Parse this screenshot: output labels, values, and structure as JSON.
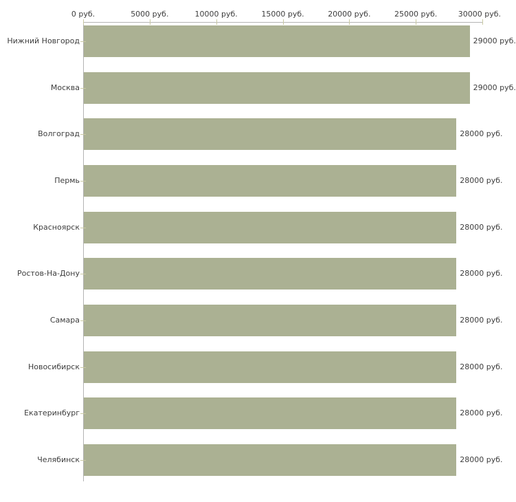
{
  "chart_data": {
    "type": "bar",
    "orientation": "horizontal",
    "title": "",
    "xlabel": "",
    "ylabel": "",
    "xlim": [
      0,
      30000
    ],
    "grid": false,
    "legend": null,
    "x_ticks": [
      {
        "value": 0,
        "label": "0 руб."
      },
      {
        "value": 5000,
        "label": "5000 руб."
      },
      {
        "value": 10000,
        "label": "10000 руб."
      },
      {
        "value": 15000,
        "label": "15000 руб."
      },
      {
        "value": 20000,
        "label": "20000 руб."
      },
      {
        "value": 25000,
        "label": "25000 руб."
      },
      {
        "value": 30000,
        "label": "30000 руб."
      }
    ],
    "categories": [
      "Нижний Новгород",
      "Москва",
      "Волгоград",
      "Пермь",
      "Красноярск",
      "Ростов-На-Дону",
      "Самара",
      "Новосибирск",
      "Екатеринбург",
      "Челябинск"
    ],
    "values": [
      29000,
      29000,
      28000,
      28000,
      28000,
      28000,
      28000,
      28000,
      28000,
      28000
    ],
    "value_labels": [
      "29000 руб.",
      "29000 руб.",
      "28000 руб.",
      "28000 руб.",
      "28000 руб.",
      "28000 руб.",
      "28000 руб.",
      "28000 руб.",
      "28000 руб.",
      "28000 руб."
    ],
    "colors": {
      "bar": "#abb193",
      "axis_line": "#b3b3b3",
      "tick": "#c9c9a3",
      "text": "#3d3d3d",
      "background": "#ffffff"
    }
  }
}
